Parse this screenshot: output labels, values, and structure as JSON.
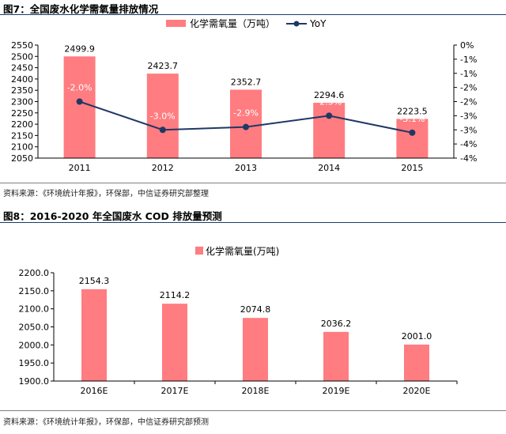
{
  "figure7": {
    "title": "图7：全国废水化学需氧量排放情况",
    "source": "资料来源：《环境统计年报》，环保部，中信证券研究部整理",
    "chart_data": {
      "type": "bar",
      "categories": [
        "2011",
        "2012",
        "2013",
        "2014",
        "2015"
      ],
      "series": [
        {
          "name": "化学需氧量（万吨）",
          "kind": "bar",
          "axis": "left",
          "values": [
            2499.9,
            2423.7,
            2352.7,
            2294.6,
            2223.5
          ],
          "labels": [
            "2499.9",
            "2423.7",
            "2352.7",
            "2294.6",
            "2223.5"
          ]
        },
        {
          "name": "YoY",
          "kind": "line",
          "axis": "right",
          "values": [
            -2.0,
            -3.0,
            -2.9,
            -2.5,
            -3.1
          ],
          "labels": [
            "-2.0%",
            "-3.0%",
            "-2.9%",
            "-2.5%",
            "-3.1%"
          ]
        }
      ],
      "left_axis": {
        "ylim": [
          2050,
          2550
        ],
        "ticks": [
          "2050",
          "2100",
          "2150",
          "2200",
          "2250",
          "2300",
          "2350",
          "2400",
          "2450",
          "2500",
          "2550"
        ]
      },
      "right_axis": {
        "ylim": [
          -4,
          0
        ],
        "ticks": [
          "0%",
          "-1%",
          "-1%",
          "-2%",
          "-2%",
          "-3%",
          "-3%",
          "-4%",
          "-4%"
        ]
      },
      "legend": "top-center",
      "bar_color": "#ff7c80",
      "line_color": "#1f3864"
    }
  },
  "figure8": {
    "title": "图8：2016-2020 年全国废水 COD 排放量预测",
    "source": "资料来源：《环境统计年报》，环保部，中信证券研究部预测",
    "chart_data": {
      "type": "bar",
      "categories": [
        "2016E",
        "2017E",
        "2018E",
        "2019E",
        "2020E"
      ],
      "series": [
        {
          "name": "化学需氧量(万吨)",
          "kind": "bar",
          "values": [
            2154.3,
            2114.2,
            2074.8,
            2036.2,
            2001.0
          ],
          "labels": [
            "2154.3",
            "2114.2",
            "2074.8",
            "2036.2",
            "2001.0"
          ]
        }
      ],
      "y_axis": {
        "ylim": [
          1900,
          2200
        ],
        "ticks": [
          "1900.0",
          "1950.0",
          "2000.0",
          "2050.0",
          "2100.0",
          "2150.0",
          "2200.0"
        ]
      },
      "legend": "top-center",
      "bar_color": "#ff7c80"
    }
  }
}
